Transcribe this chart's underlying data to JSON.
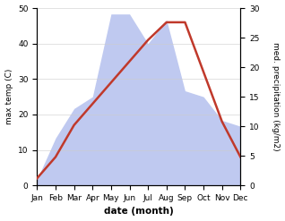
{
  "months": [
    "Jan",
    "Feb",
    "Mar",
    "Apr",
    "May",
    "Jun",
    "Jul",
    "Aug",
    "Sep",
    "Oct",
    "Nov",
    "Dec"
  ],
  "month_indices": [
    0,
    1,
    2,
    3,
    4,
    5,
    6,
    7,
    8,
    9,
    10,
    11
  ],
  "temperature": [
    2,
    8,
    17,
    23,
    29,
    35,
    41,
    46,
    46,
    32,
    18,
    8
  ],
  "precipitation": [
    1,
    8,
    13,
    15,
    29,
    29,
    24,
    28,
    16,
    15,
    11,
    10
  ],
  "temp_color": "#c0392b",
  "precip_fill_color": "#bfc9f0",
  "temp_ylim": [
    0,
    50
  ],
  "precip_ylim": [
    0,
    30
  ],
  "temp_yticks": [
    0,
    10,
    20,
    30,
    40,
    50
  ],
  "precip_yticks": [
    0,
    5,
    10,
    15,
    20,
    25,
    30
  ],
  "xlabel": "date (month)",
  "ylabel_left": "max temp (C)",
  "ylabel_right": "med. precipitation (kg/m2)",
  "bg_color": "#ffffff",
  "line_width": 1.8,
  "figsize": [
    3.18,
    2.47
  ],
  "dpi": 100
}
